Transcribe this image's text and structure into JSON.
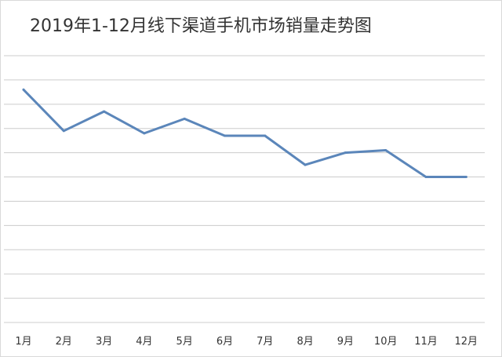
{
  "chart_data": {
    "type": "line",
    "title": "2019年1-12月线下渠道手机市场销量走势图",
    "categories": [
      "1月",
      "2月",
      "3月",
      "4月",
      "5月",
      "6月",
      "7月",
      "8月",
      "9月",
      "10月",
      "11月",
      "12月"
    ],
    "series": [
      {
        "values": [
          9.6,
          7.9,
          8.7,
          7.8,
          8.4,
          7.7,
          7.7,
          6.5,
          7.0,
          7.1,
          6.0,
          6.0
        ],
        "color": "#5b86ba"
      }
    ],
    "ylim": [
      0,
      11
    ],
    "grid": true,
    "gridline_color": "#cccccc"
  }
}
